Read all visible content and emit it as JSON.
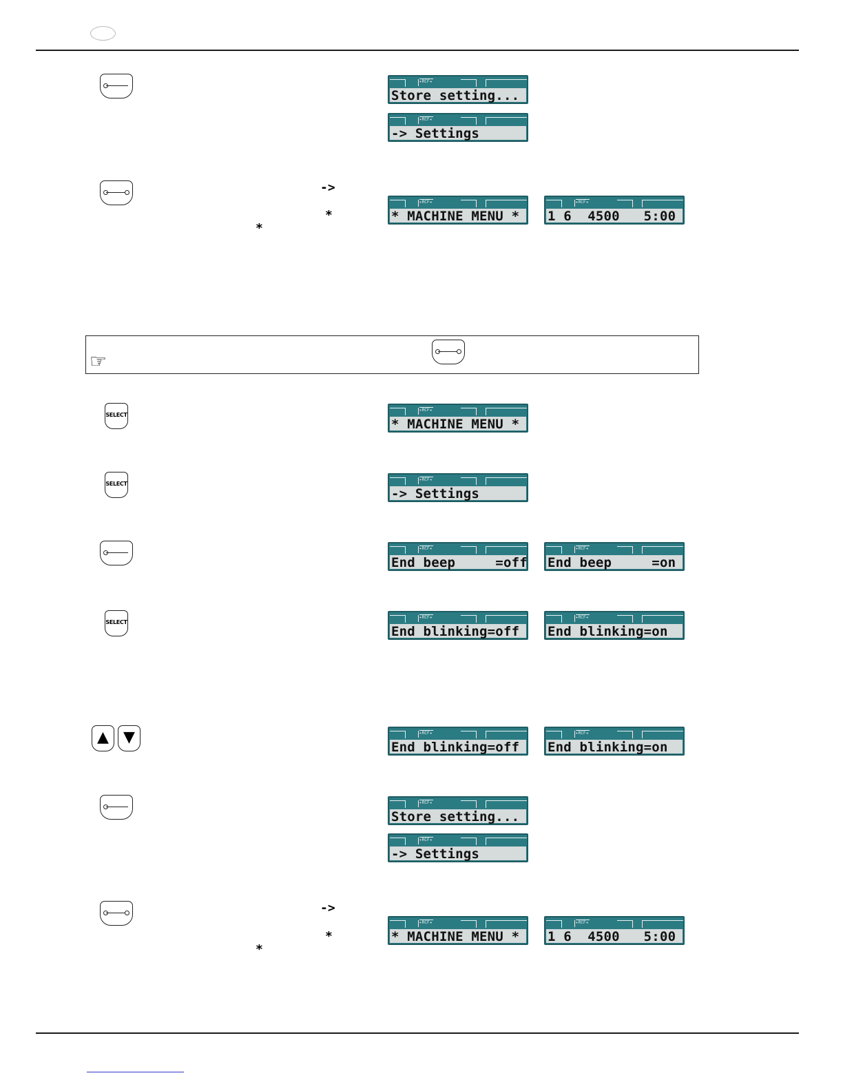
{
  "lcd_badge": "▸RCF◂",
  "displays": {
    "store_1": "Store setting...",
    "settings_1": "-> Settings",
    "machine_menu_1": "* MACHINE MENU *",
    "status_1": "1 6  4500   5:00",
    "machine_menu_2": "* MACHINE MENU *",
    "settings_2": "-> Settings",
    "beep_off": "End beep     =off",
    "beep_on": "End beep     =on",
    "blink_off_1": "End blinking=off",
    "blink_on_1": "End blinking=on",
    "blink_off_2": "End blinking=off",
    "blink_on_2": "End blinking=on",
    "store_2": "Store setting...",
    "settings_3": "-> Settings",
    "machine_menu_3": "* MACHINE MENU *",
    "status_2": "1 6  4500   5:00"
  },
  "buttons": {
    "select_label": "SELECT",
    "up_arrow": "▲",
    "down_arrow": "▼"
  },
  "glyphs": {
    "arrow": "->",
    "star": "*"
  },
  "note_icon": "☞",
  "colors": {
    "lcd_frame": "#2b7b83",
    "lcd_screen": "#d6dbdb"
  }
}
